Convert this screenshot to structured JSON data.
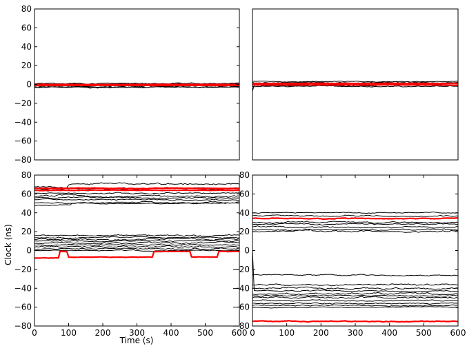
{
  "chart_data": [
    {
      "type": "line",
      "panel": "top-left",
      "title": "",
      "xlabel": "",
      "ylabel": "",
      "xlim": [
        0,
        600
      ],
      "ylim": [
        -80,
        80
      ],
      "xticks": [],
      "yticks": [
        80,
        60,
        40,
        20,
        0,
        -20,
        -40,
        -60,
        -80
      ],
      "ytick_labels": [
        "80",
        "60",
        "40",
        "20",
        "0",
        "−20",
        "−40",
        "−60",
        "−80"
      ],
      "grid": false,
      "series": [
        {
          "color": "#000000",
          "base": 0.5,
          "amp": 1.5
        },
        {
          "color": "#000000",
          "base": -1.5,
          "amp": 1.5
        },
        {
          "color": "#000000",
          "base": -2.5,
          "amp": 1.5
        },
        {
          "color": "#000000",
          "base": 1.0,
          "amp": 1.2
        },
        {
          "color": "#000000",
          "base": -0.5,
          "amp": 1.2
        },
        {
          "color": "#000000",
          "base": -3.0,
          "amp": 1.0
        },
        {
          "color": "#000000",
          "base": 0.0,
          "amp": 1.0
        },
        {
          "color": "#ff0000",
          "base": 0.0,
          "amp": 0.3,
          "highlight": true
        },
        {
          "color": "#ff0000",
          "base": -1.0,
          "amp": 0.3,
          "highlight": true
        }
      ]
    },
    {
      "type": "line",
      "panel": "top-right",
      "title": "",
      "xlabel": "",
      "ylabel": "",
      "xlim": [
        0,
        600
      ],
      "ylim": [
        -80,
        80
      ],
      "xticks": [],
      "yticks": [],
      "grid": false,
      "series": [
        {
          "color": "#000000",
          "base": 2.0,
          "amp": 1.5
        },
        {
          "color": "#000000",
          "base": -1.0,
          "amp": 1.5,
          "start": -7
        },
        {
          "color": "#000000",
          "base": 0.5,
          "amp": 1.5
        },
        {
          "color": "#000000",
          "base": -2.0,
          "amp": 1.2
        },
        {
          "color": "#000000",
          "base": 1.0,
          "amp": 1.2
        },
        {
          "color": "#000000",
          "base": 3.0,
          "amp": 1.0
        },
        {
          "color": "#ff0000",
          "base": 1.0,
          "amp": 0.4,
          "highlight": true
        },
        {
          "color": "#ff0000",
          "base": -0.5,
          "amp": 0.4,
          "highlight": true
        }
      ]
    },
    {
      "type": "line",
      "panel": "bottom-left",
      "title": "",
      "xlabel": "Time (s)",
      "ylabel": "Clock (ns)",
      "xlim": [
        0,
        600
      ],
      "ylim": [
        -80,
        80
      ],
      "xticks": [
        0,
        100,
        200,
        300,
        400,
        500,
        600
      ],
      "xtick_labels": [
        "0",
        "100",
        "200",
        "300",
        "400",
        "500",
        "600"
      ],
      "yticks": [
        80,
        60,
        40,
        20,
        0,
        -20,
        -40,
        -60,
        -80
      ],
      "ytick_labels": [
        "80",
        "60",
        "40",
        "20",
        "0",
        "−20",
        "−40",
        "−60",
        "−80"
      ],
      "grid": false,
      "series": [
        {
          "color": "#000000",
          "base": 68,
          "amp": 2,
          "steps": [
            [
              100,
              71
            ]
          ]
        },
        {
          "color": "#000000",
          "base": 66,
          "amp": 1.5
        },
        {
          "color": "#000000",
          "base": 64,
          "amp": 1.5
        },
        {
          "color": "#000000",
          "base": 61,
          "amp": 1.5
        },
        {
          "color": "#000000",
          "base": 58,
          "amp": 2
        },
        {
          "color": "#000000",
          "base": 56,
          "amp": 1.5
        },
        {
          "color": "#000000",
          "base": 54,
          "amp": 1.5
        },
        {
          "color": "#000000",
          "base": 51,
          "amp": 1.5
        },
        {
          "color": "#000000",
          "base": 48,
          "amp": 1,
          "steps": [
            [
              110,
              50
            ]
          ]
        },
        {
          "color": "#000000",
          "base": 16,
          "amp": 1.5
        },
        {
          "color": "#000000",
          "base": 14,
          "amp": 1.5
        },
        {
          "color": "#000000",
          "base": 12,
          "amp": 2
        },
        {
          "color": "#000000",
          "base": 10,
          "amp": 1.5
        },
        {
          "color": "#000000",
          "base": 8,
          "amp": 2
        },
        {
          "color": "#000000",
          "base": 6,
          "amp": 1.5
        },
        {
          "color": "#000000",
          "base": 4,
          "amp": 2
        },
        {
          "color": "#000000",
          "base": 2,
          "amp": 1.5
        },
        {
          "color": "#000000",
          "base": 0,
          "amp": 1
        },
        {
          "color": "#ff0000",
          "base": 66,
          "amp": 0.6,
          "highlight": true
        },
        {
          "color": "#ff0000",
          "base": 64,
          "amp": 0.6,
          "highlight": true
        },
        {
          "color": "#ff0000",
          "base": -8,
          "amp": 0.5,
          "highlight": true,
          "steps": [
            [
              75,
              -1
            ],
            [
              100,
              -7
            ],
            [
              350,
              -1
            ],
            [
              460,
              -7
            ],
            [
              540,
              -1
            ]
          ]
        }
      ]
    },
    {
      "type": "line",
      "panel": "bottom-right",
      "title": "",
      "xlabel": "",
      "ylabel": "",
      "xlim": [
        0,
        600
      ],
      "ylim": [
        -80,
        80
      ],
      "xticks": [
        0,
        100,
        200,
        300,
        400,
        500,
        600
      ],
      "xtick_labels": [
        "0",
        "100",
        "200",
        "300",
        "400",
        "500",
        "600"
      ],
      "yticks": [
        80,
        60,
        40,
        20,
        0,
        -20,
        -40,
        -60,
        -80
      ],
      "ytick_labels": [
        "80",
        "60",
        "40",
        "20",
        "0",
        "−20",
        "−40",
        "−60",
        "−80"
      ],
      "grid": false,
      "series": [
        {
          "color": "#000000",
          "base": 40,
          "amp": 1
        },
        {
          "color": "#000000",
          "base": 37,
          "amp": 1.5
        },
        {
          "color": "#000000",
          "base": 30,
          "amp": 2
        },
        {
          "color": "#000000",
          "base": 28,
          "amp": 1.5
        },
        {
          "color": "#000000",
          "base": 25,
          "amp": 2
        },
        {
          "color": "#000000",
          "base": 22,
          "amp": 1.5
        },
        {
          "color": "#000000",
          "base": 20,
          "amp": 2
        },
        {
          "color": "#000000",
          "base": -26,
          "amp": 1.5
        },
        {
          "color": "#000000",
          "base": -36,
          "amp": 2
        },
        {
          "color": "#000000",
          "base": -40,
          "amp": 2
        },
        {
          "color": "#000000",
          "base": -43,
          "amp": 1.5,
          "start": 0,
          "steps": [
            [
              15,
              -43
            ]
          ]
        },
        {
          "color": "#000000",
          "base": -46,
          "amp": 2
        },
        {
          "color": "#000000",
          "base": -48,
          "amp": 1.5
        },
        {
          "color": "#000000",
          "base": -50,
          "amp": 2
        },
        {
          "color": "#000000",
          "base": -53,
          "amp": 1.5
        },
        {
          "color": "#000000",
          "base": -56,
          "amp": 1.5
        },
        {
          "color": "#000000",
          "base": -58,
          "amp": 1.5
        },
        {
          "color": "#000000",
          "base": -60,
          "amp": 1
        },
        {
          "color": "#ff0000",
          "base": 34,
          "amp": 1,
          "highlight": true
        },
        {
          "color": "#ff0000",
          "base": -75,
          "amp": 1,
          "highlight": true
        }
      ]
    }
  ]
}
